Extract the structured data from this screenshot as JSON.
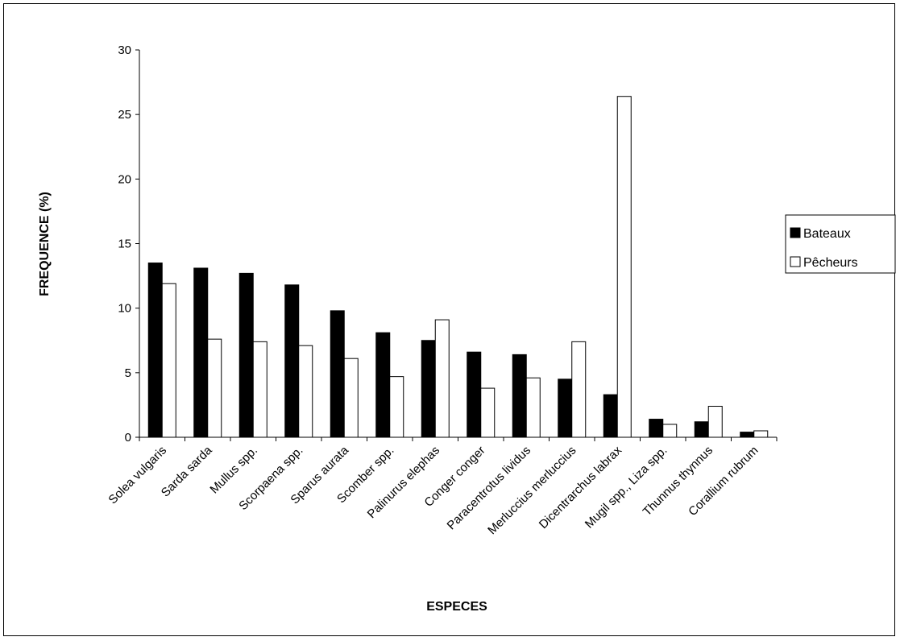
{
  "chart_data": {
    "type": "bar",
    "title": "",
    "xlabel": "ESPECES",
    "ylabel": "FREQUENCE (%)",
    "ylim": [
      0,
      30
    ],
    "yticks": [
      "0",
      "5",
      "10",
      "15",
      "20",
      "25",
      "30"
    ],
    "grid": false,
    "legend_position": "right",
    "categories": [
      "Solea vulgaris",
      "Sarda sarda",
      "Mullus spp.",
      "Scorpaena spp.",
      "Sparus aurata",
      "Scomber spp.",
      "Palinurus elephas",
      "Conger conger",
      "Paracentrotus lividus",
      "Merluccius merluccius",
      "Dicentrarchus labrax",
      "Mugil spp., Liza spp.",
      "Thunnus thynnus",
      "Corallium rubrum"
    ],
    "series": [
      {
        "name": "Bateaux",
        "color": "#000000",
        "values": [
          13.5,
          13.1,
          12.7,
          11.8,
          9.8,
          8.1,
          7.5,
          6.6,
          6.4,
          4.5,
          3.3,
          1.4,
          1.2,
          0.4
        ]
      },
      {
        "name": "Pêcheurs",
        "color": "#ffffff",
        "values": [
          11.9,
          7.6,
          7.4,
          7.1,
          6.1,
          4.7,
          9.1,
          3.8,
          4.6,
          7.4,
          26.4,
          1.0,
          2.4,
          0.5
        ]
      }
    ]
  }
}
